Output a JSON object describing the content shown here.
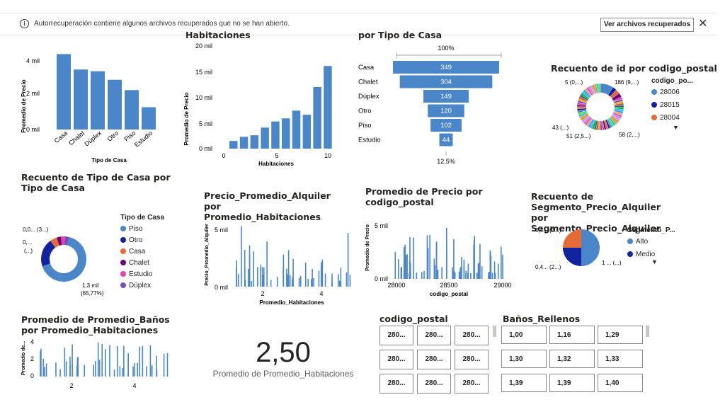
{
  "notification": {
    "text": "Autorrecuperación contiene algunos archivos recuperados que no se han abierto.",
    "button": "Ver archivos recuperados"
  },
  "colors": {
    "accent": "#4a86c8",
    "dark": "#12239e",
    "orange": "#e66c37",
    "purple": "#6b007b",
    "pink": "#e044a7",
    "violet": "#744ec2"
  },
  "visuals": {
    "v1": {
      "ylabel": "Promedio de Precio",
      "xlabel": "Tipo de Casa",
      "ticks": [
        "4 mil",
        "2 mil",
        "0 mil"
      ]
    },
    "v2": {
      "title": "Habitaciones",
      "ylabel": "Promedio de Precio",
      "xlabel": "Habitaciones",
      "ticks": [
        "20 mil",
        "15 mil",
        "10 mil",
        "5 mil",
        "0 mil"
      ],
      "xticks": [
        "0",
        "5",
        "10"
      ]
    },
    "v3": {
      "title": "por Tipo de Casa",
      "top": "100%",
      "bottom": "12,5%"
    },
    "v4": {
      "title": "Recuento de id por codigo_postal",
      "legend_title": "codigo_po...",
      "legend": [
        "28006",
        "28015",
        "28004"
      ],
      "labels": [
        "5 (0,...)",
        "186 (9,...)",
        "43 (...)",
        "51 (2,5...)",
        "58 (2,...)"
      ]
    },
    "v5": {
      "title": "Recuento de Tipo de Casa por Tipo de Casa",
      "legend_title": "Tipo de Casa",
      "legend": [
        "Piso",
        "Otro",
        "Casa",
        "Chalet",
        "Estudio",
        "Dúplex"
      ],
      "labels": [
        "0,0... (3...)",
        "0,...",
        "(...)",
        "1,3 mil",
        "(65,77%)"
      ]
    },
    "v6": {
      "title": "Precio_Promedio_Alquiler por Promedio_Habitaciones",
      "ylabel": "Precio_Promedio_Alquiler",
      "xlabel": "Promedio_Habitaciones",
      "ticks": [
        "5 mil",
        "0 mil"
      ],
      "xticks": [
        "2",
        "4"
      ]
    },
    "v7": {
      "title": "Promedio de Precio por codigo_postal",
      "ylabel": "Promedio de Precio",
      "xlabel": "codigo_postal",
      "ticks": [
        "5 mil",
        "0 mil"
      ],
      "xticks": [
        "28000",
        "28500",
        "29000"
      ]
    },
    "v8": {
      "title": "Recuento de Segmento_Precio_Alquiler por Segmento_Precio_Alquiler",
      "legend_title": "Segmento_P...",
      "legend": [
        "Alto",
        "Medio"
      ],
      "labels": [
        "0,4... (2...)",
        "0,4... (2...)",
        "1 ... (...)"
      ]
    },
    "v9": {
      "title": "Promedio de Promedio_Baños por Promedio_Habitaciones",
      "ylabel": "Promedio de...",
      "ticks": [
        "4",
        "2",
        "0"
      ],
      "xticks": [
        "2",
        "4"
      ]
    },
    "kpi": {
      "value": "2,50",
      "label": "Promedio de Promedio_Habitaciones"
    },
    "slicer_cp": {
      "title": "codigo_postal",
      "items": [
        "280...",
        "280...",
        "280...",
        "280...",
        "280...",
        "280...",
        "280...",
        "280...",
        "280..."
      ]
    },
    "slicer_banos": {
      "title": "Baños_Rellenos",
      "items": [
        "1,00",
        "1,16",
        "1,29",
        "1,30",
        "1,32",
        "1,33",
        "1,39",
        "1,39",
        "1,40"
      ]
    }
  },
  "chart_data": [
    {
      "type": "bar",
      "categories": [
        "Casa",
        "Chalet",
        "Dúplex",
        "Otro",
        "Piso",
        "Estudio"
      ],
      "values": [
        4.4,
        3.5,
        3.4,
        2.9,
        2.3,
        1.3
      ],
      "ylabel": "Promedio de Precio",
      "xlabel": "Tipo de Casa",
      "ylim": [
        0,
        4.5
      ]
    },
    {
      "type": "bar",
      "categories": [
        "1",
        "2",
        "3",
        "4",
        "5",
        "6",
        "7",
        "8",
        "9",
        "10"
      ],
      "values": [
        1.5,
        2.3,
        2.6,
        4.1,
        5.3,
        5.9,
        7.4,
        6.6,
        12.0,
        16.1
      ],
      "ylabel": "Promedio de Precio",
      "xlabel": "Habitaciones",
      "ylim": [
        0,
        20
      ]
    },
    {
      "type": "bar",
      "categories": [
        "Casa",
        "Chalet",
        "Dúplex",
        "Otro",
        "Piso",
        "Estudio"
      ],
      "values": [
        349,
        304,
        149,
        120,
        102,
        44
      ]
    },
    {
      "type": "pie",
      "categories": [
        "Piso",
        "Otro",
        "Casa",
        "Chalet",
        "Estudio",
        "Dúplex"
      ],
      "values": [
        65.77,
        20,
        5,
        3,
        3,
        3
      ]
    },
    {
      "type": "pie",
      "categories": [
        "Alto",
        "Medio",
        "Otro"
      ],
      "values": [
        50,
        25,
        25
      ]
    }
  ]
}
